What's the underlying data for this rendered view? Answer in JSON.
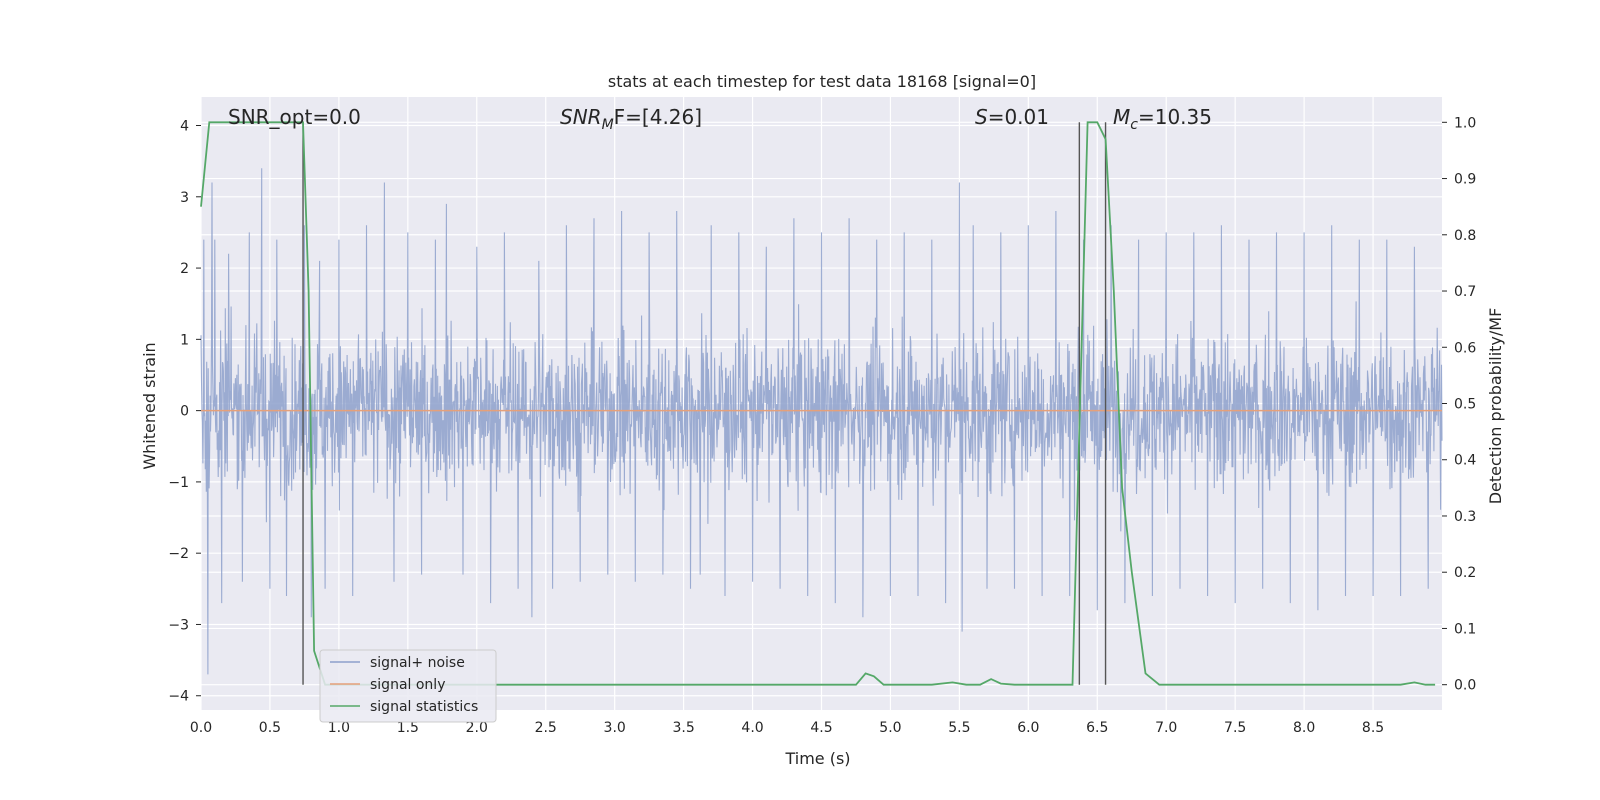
{
  "chart_data": {
    "type": "line",
    "title": "stats at each timestep for test data 18168 [signal=0]",
    "xlabel": "Time (s)",
    "ylabel_left": "Whitened strain",
    "ylabel_right": "Detection probability/MF",
    "xlim": [
      0.0,
      9.0
    ],
    "ylim_left": [
      -4.2,
      4.4
    ],
    "ylim_right": [
      -0.045,
      1.045
    ],
    "x_ticks": [
      "0.0",
      "0.5",
      "1.0",
      "1.5",
      "2.0",
      "2.5",
      "3.0",
      "3.5",
      "4.0",
      "4.5",
      "5.0",
      "5.5",
      "6.0",
      "6.5",
      "7.0",
      "7.5",
      "8.0",
      "8.5"
    ],
    "y_ticks_left": [
      "4",
      "3",
      "2",
      "1",
      "0",
      "−1",
      "−2",
      "−3",
      "−4"
    ],
    "y_ticks_right": [
      "1.0",
      "0.9",
      "0.8",
      "0.7",
      "0.6",
      "0.5",
      "0.4",
      "0.3",
      "0.2",
      "0.1",
      "0.0"
    ],
    "grid": true,
    "annotations": {
      "snr_opt": "SNR_opt=0.0",
      "snr_mf_main": "SNR",
      "snr_mf_sub": "M",
      "snr_mf_rest": "F=[4.26]",
      "s_main": "S",
      "s_rest": "=0.01",
      "mc_main": "M",
      "mc_sub": "c",
      "mc_rest": "=10.35"
    },
    "vlines_x": [
      0.74,
      6.37,
      6.56
    ],
    "legend": {
      "placement": "lower-left",
      "entries": [
        "signal+ noise",
        "signal only",
        "signal statistics"
      ]
    },
    "series": [
      {
        "name": "signal+ noise",
        "axis": "left",
        "color": "#8da0cb",
        "description_values": "whitened strain noise, sample peaks",
        "peaks_x": [
          0.02,
          0.05,
          0.08,
          0.1,
          0.15,
          0.2,
          0.3,
          0.35,
          0.44,
          0.5,
          0.55,
          0.62,
          0.75,
          0.8,
          0.86,
          0.9,
          1.0,
          1.1,
          1.2,
          1.33,
          1.4,
          1.5,
          1.6,
          1.7,
          1.78,
          1.9,
          2.0,
          2.1,
          2.2,
          2.3,
          2.4,
          2.45,
          2.55,
          2.65,
          2.75,
          2.85,
          2.95,
          3.05,
          3.15,
          3.25,
          3.35,
          3.45,
          3.55,
          3.62,
          3.7,
          3.8,
          3.9,
          4.0,
          4.1,
          4.2,
          4.3,
          4.4,
          4.5,
          4.6,
          4.7,
          4.8,
          4.9,
          5.0,
          5.1,
          5.2,
          5.3,
          5.4,
          5.5,
          5.52,
          5.6,
          5.7,
          5.8,
          5.9,
          6.0,
          6.1,
          6.2,
          6.3,
          6.4,
          6.5,
          6.6,
          6.7,
          6.8,
          6.9,
          7.0,
          7.1,
          7.2,
          7.3,
          7.4,
          7.5,
          7.6,
          7.7,
          7.8,
          7.9,
          8.0,
          8.1,
          8.2,
          8.3,
          8.4,
          8.5,
          8.6,
          8.7,
          8.8,
          8.9
        ],
        "peaks_y": [
          2.4,
          -3.7,
          3.2,
          2.4,
          -2.7,
          2.2,
          -2.4,
          2.5,
          3.4,
          -2.5,
          2.4,
          -2.6,
          2.6,
          -2.9,
          2.1,
          -2.5,
          2.4,
          -2.6,
          2.6,
          3.2,
          -2.4,
          2.5,
          -2.3,
          2.4,
          2.9,
          -2.3,
          2.3,
          -2.7,
          2.5,
          -2.5,
          -2.9,
          2.1,
          -2.5,
          2.6,
          -2.4,
          2.7,
          -2.3,
          2.8,
          -2.4,
          2.5,
          -2.3,
          2.8,
          -2.5,
          -2.3,
          2.6,
          -2.6,
          2.5,
          -2.4,
          2.3,
          -2.5,
          2.7,
          -2.6,
          2.5,
          -2.7,
          2.7,
          -2.9,
          2.4,
          -2.6,
          2.5,
          -2.6,
          2.4,
          -2.7,
          3.2,
          -3.1,
          2.6,
          -2.5,
          2.5,
          -2.5,
          2.6,
          -2.6,
          2.8,
          -2.6,
          2.4,
          -2.8,
          2.6,
          -2.7,
          2.4,
          -2.6,
          2.5,
          -2.5,
          2.5,
          -2.6,
          2.6,
          -2.7,
          2.4,
          -2.5,
          2.5,
          -2.7,
          2.5,
          -2.8,
          2.6,
          -2.6,
          2.4,
          -2.6,
          2.4,
          -2.6,
          2.3,
          -2.5
        ]
      },
      {
        "name": "signal only",
        "axis": "left",
        "color": "#e5a07a",
        "x": [
          0.0,
          9.0
        ],
        "y": [
          0.0,
          0.0
        ]
      },
      {
        "name": "signal statistics",
        "axis": "right",
        "color": "#55a868",
        "x": [
          0.0,
          0.06,
          0.1,
          0.2,
          0.3,
          0.5,
          0.74,
          0.78,
          0.82,
          0.9,
          1.0,
          2.0,
          3.0,
          4.0,
          4.75,
          4.82,
          4.88,
          4.95,
          5.0,
          5.3,
          5.45,
          5.55,
          5.65,
          5.73,
          5.8,
          5.9,
          6.0,
          6.2,
          6.32,
          6.43,
          6.5,
          6.56,
          6.62,
          6.68,
          6.75,
          6.85,
          6.95,
          7.5,
          8.0,
          8.5,
          8.7,
          8.8,
          8.88,
          8.95
        ],
        "y": [
          0.85,
          1.0,
          1.0,
          1.0,
          1.0,
          1.0,
          1.0,
          0.7,
          0.06,
          0.0,
          0.0,
          0.0,
          0.0,
          0.0,
          0.0,
          0.02,
          0.015,
          0.0,
          0.0,
          0.0,
          0.004,
          0.0,
          0.0,
          0.01,
          0.002,
          0.0,
          0.0,
          0.0,
          0.0,
          1.0,
          1.0,
          0.97,
          0.7,
          0.35,
          0.2,
          0.02,
          0.0,
          0.0,
          0.0,
          0.0,
          0.0,
          0.004,
          0.0,
          0.0
        ]
      }
    ]
  }
}
